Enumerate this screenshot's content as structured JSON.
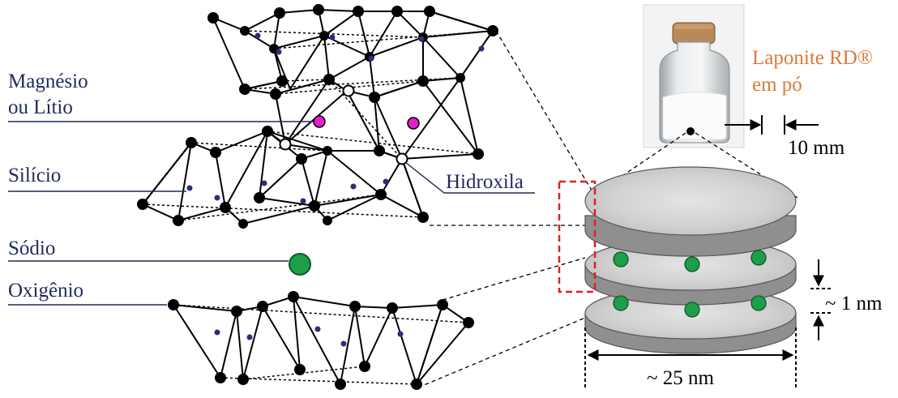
{
  "labels": {
    "magnesio": "Magnésio",
    "litio": "ou Lítio",
    "silicio": "Silício",
    "hidroxila": "Hidroxila",
    "sodio": "Sódio",
    "oxigenio": "Oxigênio",
    "product_line1": "Laponite RD®",
    "product_line2": "em pó",
    "vial_scale": "10 mm",
    "thickness": "~ 1 nm",
    "diameter": "~ 25 nm"
  },
  "colors": {
    "label_text": "#1f2a5c",
    "product_text": "#d77b3a",
    "magnesium": "#e21fc9",
    "sodium": "#1e9e4a",
    "silicon": "#2b2d7a",
    "oxygen": "#000000",
    "disc_top": "#cfcfcf",
    "disc_side": "#8f8f8f",
    "highlight_box": "#e02020"
  },
  "icons": {
    "vial": "powder-vial-photo",
    "disc_stack": "laponite-disc-stack"
  }
}
